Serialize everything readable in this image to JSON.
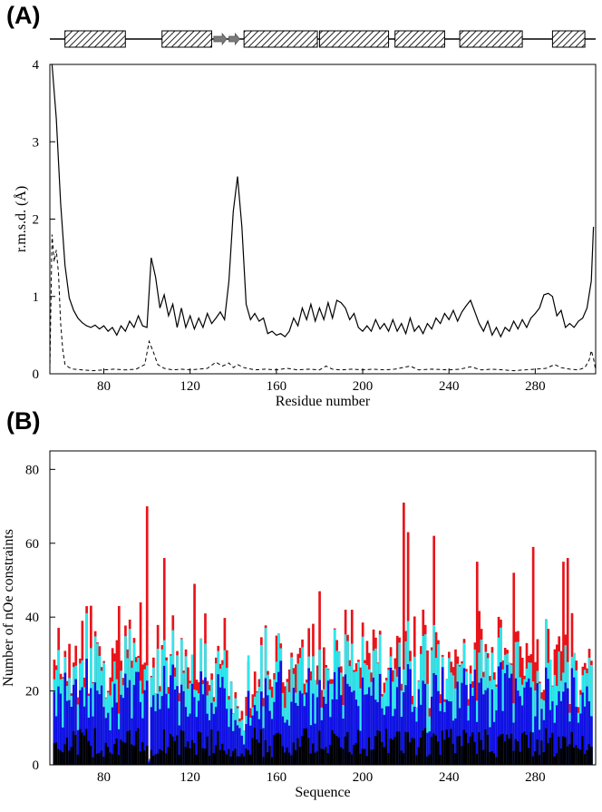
{
  "panel_a": {
    "label": "(A)"
  },
  "panel_b": {
    "label": "(B)"
  },
  "colors": {
    "axis": "#000000",
    "bar_red": "#e8141a",
    "bar_cyan": "#2ee8ee",
    "bar_blue": "#1010e6",
    "bar_black": "#000000"
  },
  "chart_data": [
    {
      "type": "line",
      "panel": "A",
      "title": "",
      "xlabel": "Residue number",
      "ylabel": "r.m.s.d. (Å)",
      "xlim": [
        55,
        308
      ],
      "ylim": [
        0,
        4
      ],
      "xticks": [
        80,
        120,
        160,
        200,
        240,
        280
      ],
      "yticks": [
        0,
        1,
        2,
        3,
        4
      ],
      "secondary_structure": {
        "helices": [
          [
            62,
            90
          ],
          [
            107,
            130
          ],
          [
            145,
            179
          ],
          [
            180,
            212
          ],
          [
            215,
            238
          ],
          [
            245,
            274
          ],
          [
            288,
            303
          ]
        ],
        "strands": [
          [
            131,
            137
          ],
          [
            138,
            143
          ]
        ]
      },
      "series": [
        {
          "name": "solid",
          "style": "solid",
          "points": [
            [
              56,
              4.0
            ],
            [
              58,
              3.3
            ],
            [
              60,
              2.2
            ],
            [
              62,
              1.4
            ],
            [
              64,
              0.98
            ],
            [
              66,
              0.82
            ],
            [
              68,
              0.72
            ],
            [
              70,
              0.66
            ],
            [
              72,
              0.62
            ],
            [
              74,
              0.6
            ],
            [
              76,
              0.63
            ],
            [
              78,
              0.58
            ],
            [
              80,
              0.62
            ],
            [
              82,
              0.55
            ],
            [
              84,
              0.6
            ],
            [
              86,
              0.5
            ],
            [
              88,
              0.62
            ],
            [
              90,
              0.55
            ],
            [
              92,
              0.68
            ],
            [
              94,
              0.6
            ],
            [
              96,
              0.75
            ],
            [
              98,
              0.62
            ],
            [
              100,
              0.6
            ],
            [
              102,
              1.5
            ],
            [
              104,
              1.25
            ],
            [
              106,
              0.85
            ],
            [
              108,
              1.02
            ],
            [
              110,
              0.75
            ],
            [
              112,
              0.9
            ],
            [
              114,
              0.6
            ],
            [
              116,
              0.85
            ],
            [
              118,
              0.6
            ],
            [
              120,
              0.75
            ],
            [
              122,
              0.58
            ],
            [
              124,
              0.72
            ],
            [
              126,
              0.6
            ],
            [
              128,
              0.78
            ],
            [
              130,
              0.65
            ],
            [
              132,
              0.72
            ],
            [
              134,
              0.8
            ],
            [
              136,
              0.7
            ],
            [
              138,
              1.2
            ],
            [
              140,
              2.1
            ],
            [
              142,
              2.55
            ],
            [
              144,
              1.9
            ],
            [
              146,
              0.9
            ],
            [
              148,
              0.7
            ],
            [
              150,
              0.78
            ],
            [
              152,
              0.68
            ],
            [
              154,
              0.72
            ],
            [
              156,
              0.52
            ],
            [
              158,
              0.55
            ],
            [
              160,
              0.5
            ],
            [
              162,
              0.52
            ],
            [
              164,
              0.48
            ],
            [
              166,
              0.55
            ],
            [
              168,
              0.72
            ],
            [
              170,
              0.62
            ],
            [
              172,
              0.85
            ],
            [
              174,
              0.7
            ],
            [
              176,
              0.9
            ],
            [
              178,
              0.68
            ],
            [
              180,
              0.85
            ],
            [
              182,
              0.7
            ],
            [
              184,
              0.92
            ],
            [
              186,
              0.72
            ],
            [
              188,
              0.95
            ],
            [
              190,
              0.92
            ],
            [
              192,
              0.85
            ],
            [
              194,
              0.7
            ],
            [
              196,
              0.78
            ],
            [
              198,
              0.6
            ],
            [
              200,
              0.55
            ],
            [
              202,
              0.62
            ],
            [
              204,
              0.55
            ],
            [
              206,
              0.7
            ],
            [
              208,
              0.58
            ],
            [
              210,
              0.65
            ],
            [
              212,
              0.55
            ],
            [
              214,
              0.7
            ],
            [
              216,
              0.55
            ],
            [
              218,
              0.65
            ],
            [
              220,
              0.52
            ],
            [
              222,
              0.72
            ],
            [
              224,
              0.55
            ],
            [
              226,
              0.62
            ],
            [
              228,
              0.52
            ],
            [
              230,
              0.65
            ],
            [
              232,
              0.58
            ],
            [
              234,
              0.72
            ],
            [
              236,
              0.65
            ],
            [
              238,
              0.78
            ],
            [
              240,
              0.7
            ],
            [
              242,
              0.82
            ],
            [
              244,
              0.68
            ],
            [
              246,
              0.8
            ],
            [
              248,
              0.88
            ],
            [
              250,
              0.95
            ],
            [
              252,
              0.8
            ],
            [
              254,
              0.65
            ],
            [
              256,
              0.55
            ],
            [
              258,
              0.68
            ],
            [
              260,
              0.5
            ],
            [
              262,
              0.6
            ],
            [
              264,
              0.48
            ],
            [
              266,
              0.6
            ],
            [
              268,
              0.55
            ],
            [
              270,
              0.68
            ],
            [
              272,
              0.58
            ],
            [
              274,
              0.7
            ],
            [
              276,
              0.6
            ],
            [
              278,
              0.72
            ],
            [
              280,
              0.78
            ],
            [
              282,
              0.85
            ],
            [
              284,
              1.02
            ],
            [
              286,
              1.04
            ],
            [
              288,
              1.0
            ],
            [
              290,
              0.75
            ],
            [
              292,
              0.82
            ],
            [
              294,
              0.6
            ],
            [
              296,
              0.65
            ],
            [
              298,
              0.6
            ],
            [
              300,
              0.68
            ],
            [
              302,
              0.72
            ],
            [
              304,
              0.85
            ],
            [
              306,
              1.2
            ],
            [
              307,
              1.9
            ]
          ]
        },
        {
          "name": "dashed",
          "style": "dashed",
          "points": [
            [
              55,
              0.05
            ],
            [
              56,
              1.8
            ],
            [
              57,
              1.45
            ],
            [
              58,
              1.6
            ],
            [
              59,
              1.3
            ],
            [
              60,
              0.65
            ],
            [
              61,
              0.3
            ],
            [
              62,
              0.12
            ],
            [
              64,
              0.08
            ],
            [
              66,
              0.06
            ],
            [
              70,
              0.05
            ],
            [
              75,
              0.04
            ],
            [
              80,
              0.05
            ],
            [
              85,
              0.06
            ],
            [
              90,
              0.05
            ],
            [
              95,
              0.06
            ],
            [
              99,
              0.12
            ],
            [
              101,
              0.42
            ],
            [
              103,
              0.28
            ],
            [
              105,
              0.12
            ],
            [
              108,
              0.07
            ],
            [
              112,
              0.05
            ],
            [
              116,
              0.06
            ],
            [
              120,
              0.05
            ],
            [
              124,
              0.06
            ],
            [
              128,
              0.07
            ],
            [
              132,
              0.15
            ],
            [
              135,
              0.1
            ],
            [
              138,
              0.14
            ],
            [
              140,
              0.08
            ],
            [
              142,
              0.12
            ],
            [
              145,
              0.08
            ],
            [
              150,
              0.05
            ],
            [
              155,
              0.06
            ],
            [
              160,
              0.05
            ],
            [
              165,
              0.07
            ],
            [
              170,
              0.05
            ],
            [
              175,
              0.06
            ],
            [
              180,
              0.05
            ],
            [
              183,
              0.1
            ],
            [
              186,
              0.06
            ],
            [
              190,
              0.05
            ],
            [
              195,
              0.06
            ],
            [
              200,
              0.05
            ],
            [
              205,
              0.06
            ],
            [
              210,
              0.05
            ],
            [
              215,
              0.06
            ],
            [
              222,
              0.1
            ],
            [
              226,
              0.05
            ],
            [
              232,
              0.06
            ],
            [
              240,
              0.05
            ],
            [
              245,
              0.06
            ],
            [
              250,
              0.09
            ],
            [
              255,
              0.05
            ],
            [
              260,
              0.06
            ],
            [
              265,
              0.05
            ],
            [
              270,
              0.04
            ],
            [
              275,
              0.05
            ],
            [
              280,
              0.06
            ],
            [
              285,
              0.07
            ],
            [
              289,
              0.12
            ],
            [
              292,
              0.08
            ],
            [
              296,
              0.06
            ],
            [
              300,
              0.05
            ],
            [
              303,
              0.08
            ],
            [
              305,
              0.18
            ],
            [
              306,
              0.3
            ],
            [
              307,
              0.2
            ],
            [
              308,
              0.05
            ]
          ]
        }
      ]
    },
    {
      "type": "bar",
      "panel": "B",
      "title": "",
      "xlabel": "Sequence",
      "ylabel": "Number of nOe constraints",
      "xlim": [
        55,
        308
      ],
      "ylim": [
        0,
        85
      ],
      "xticks": [
        80,
        120,
        160,
        200,
        240,
        280
      ],
      "yticks": [
        0,
        20,
        40,
        60,
        80
      ],
      "series_names": [
        "red",
        "cyan",
        "blue",
        "black"
      ],
      "stacked_totals_note": "cumulative heights per residue, pattern estimated from figure",
      "seed": 7,
      "highlights": {
        "red": [
          [
            100,
            70
          ],
          [
            219,
            71
          ],
          [
            221,
            63
          ],
          [
            233,
            62
          ],
          [
            253,
            55
          ],
          [
            270,
            52
          ],
          [
            279,
            59
          ],
          [
            293,
            55
          ],
          [
            295,
            56
          ],
          [
            122,
            49
          ],
          [
            108,
            56
          ],
          [
            180,
            47
          ],
          [
            192,
            42
          ],
          [
            195,
            42
          ],
          [
            175,
            37
          ],
          [
            87,
            43
          ],
          [
            97,
            44
          ],
          [
            70,
            39
          ],
          [
            147,
            28
          ],
          [
            160,
            35
          ]
        ]
      }
    }
  ]
}
